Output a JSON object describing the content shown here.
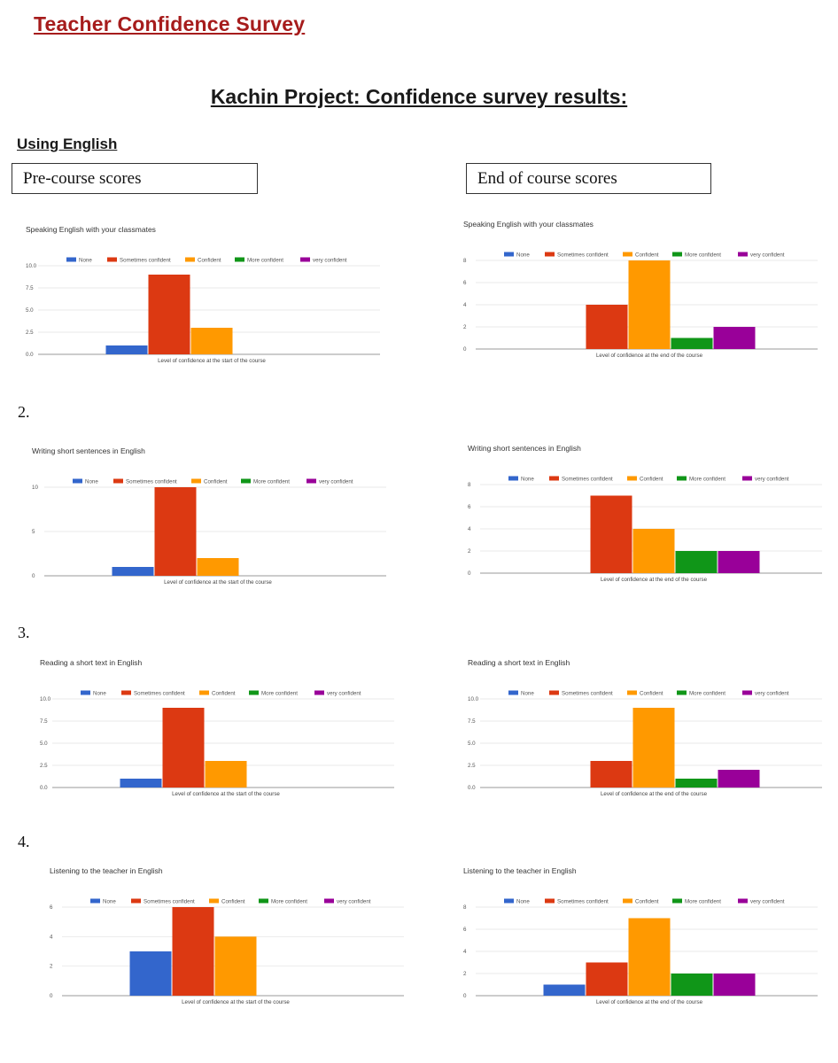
{
  "header": {
    "doc_title": "Teacher Confidence Survey",
    "project_title": "Kachin Project: Confidence survey results:",
    "section_title": "Using English",
    "pre_label": "Pre-course scores",
    "end_label": "End of course scores"
  },
  "numbers": [
    "2.",
    "3.",
    "4."
  ],
  "colors": {
    "None": "#3366cc",
    "Sometimes confident": "#dc3912",
    "Confident": "#ff9900",
    "More confident": "#109618",
    "very confident": "#990099"
  },
  "chart_data": [
    {
      "type": "bar",
      "title": "Speaking English with your classmates",
      "xlabel": "Level of confidence at the start of the course",
      "series": [
        {
          "name": "None",
          "values": [
            1
          ]
        },
        {
          "name": "Sometimes confident",
          "values": [
            9
          ]
        },
        {
          "name": "Confident",
          "values": [
            3
          ]
        },
        {
          "name": "More confident",
          "values": [
            0
          ]
        },
        {
          "name": "very confident",
          "values": [
            0
          ]
        }
      ],
      "yticks": [
        "0.0",
        "2.5",
        "5.0",
        "7.5",
        "10.0"
      ],
      "ylim": [
        0,
        10
      ],
      "legend": "top"
    },
    {
      "type": "bar",
      "title": "Speaking English with your classmates",
      "xlabel": "Level of confidence at the end of the course",
      "series": [
        {
          "name": "None",
          "values": [
            0
          ]
        },
        {
          "name": "Sometimes confident",
          "values": [
            4
          ]
        },
        {
          "name": "Confident",
          "values": [
            8
          ]
        },
        {
          "name": "More confident",
          "values": [
            1
          ]
        },
        {
          "name": "very confident",
          "values": [
            2
          ]
        }
      ],
      "yticks": [
        "0",
        "2",
        "4",
        "6",
        "8"
      ],
      "ylim": [
        0,
        8
      ],
      "legend": "top"
    },
    {
      "type": "bar",
      "title": "Writing short sentences in English",
      "xlabel": "Level of confidence at the start of the course",
      "series": [
        {
          "name": "None",
          "values": [
            1
          ]
        },
        {
          "name": "Sometimes confident",
          "values": [
            10
          ]
        },
        {
          "name": "Confident",
          "values": [
            2
          ]
        },
        {
          "name": "More confident",
          "values": [
            0
          ]
        },
        {
          "name": "very confident",
          "values": [
            0
          ]
        }
      ],
      "yticks": [
        "0",
        "5",
        "10"
      ],
      "ylim": [
        0,
        10
      ],
      "legend": "top"
    },
    {
      "type": "bar",
      "title": "Writing short sentences in English",
      "xlabel": "Level of confidence at the end of the course",
      "series": [
        {
          "name": "None",
          "values": [
            0
          ]
        },
        {
          "name": "Sometimes confident",
          "values": [
            7
          ]
        },
        {
          "name": "Confident",
          "values": [
            4
          ]
        },
        {
          "name": "More confident",
          "values": [
            2
          ]
        },
        {
          "name": "very confident",
          "values": [
            2
          ]
        }
      ],
      "yticks": [
        "0",
        "2",
        "4",
        "6",
        "8"
      ],
      "ylim": [
        0,
        8
      ],
      "legend": "top"
    },
    {
      "type": "bar",
      "title": "Reading a short text in English",
      "xlabel": "Level of confidence at the start of the course",
      "series": [
        {
          "name": "None",
          "values": [
            1
          ]
        },
        {
          "name": "Sometimes confident",
          "values": [
            9
          ]
        },
        {
          "name": "Confident",
          "values": [
            3
          ]
        },
        {
          "name": "More confident",
          "values": [
            0
          ]
        },
        {
          "name": "very confident",
          "values": [
            0
          ]
        }
      ],
      "yticks": [
        "0.0",
        "2.5",
        "5.0",
        "7.5",
        "10.0"
      ],
      "ylim": [
        0,
        10
      ],
      "legend": "top"
    },
    {
      "type": "bar",
      "title": "Reading a short text in English",
      "xlabel": "Level of confidence at the end of the course",
      "series": [
        {
          "name": "None",
          "values": [
            0
          ]
        },
        {
          "name": "Sometimes confident",
          "values": [
            3
          ]
        },
        {
          "name": "Confident",
          "values": [
            9
          ]
        },
        {
          "name": "More confident",
          "values": [
            1
          ]
        },
        {
          "name": "very confident",
          "values": [
            2
          ]
        }
      ],
      "yticks": [
        "0.0",
        "2.5",
        "5.0",
        "7.5",
        "10.0"
      ],
      "ylim": [
        0,
        10
      ],
      "legend": "top"
    },
    {
      "type": "bar",
      "title": "Listening to the teacher in English",
      "xlabel": "Level of confidence at the start of the course",
      "series": [
        {
          "name": "None",
          "values": [
            3
          ]
        },
        {
          "name": "Sometimes confident",
          "values": [
            6
          ]
        },
        {
          "name": "Confident",
          "values": [
            4
          ]
        },
        {
          "name": "More confident",
          "values": [
            0
          ]
        },
        {
          "name": "very confident",
          "values": [
            0
          ]
        }
      ],
      "yticks": [
        "0",
        "2",
        "4",
        "6"
      ],
      "ylim": [
        0,
        6
      ],
      "legend": "top"
    },
    {
      "type": "bar",
      "title": "Listening to the teacher in English",
      "xlabel": "Level of confidence at the end of the course",
      "series": [
        {
          "name": "None",
          "values": [
            1
          ]
        },
        {
          "name": "Sometimes confident",
          "values": [
            3
          ]
        },
        {
          "name": "Confident",
          "values": [
            7
          ]
        },
        {
          "name": "More confident",
          "values": [
            2
          ]
        },
        {
          "name": "very confident",
          "values": [
            2
          ]
        }
      ],
      "yticks": [
        "0",
        "2",
        "4",
        "6",
        "8"
      ],
      "ylim": [
        0,
        8
      ],
      "legend": "top"
    }
  ]
}
